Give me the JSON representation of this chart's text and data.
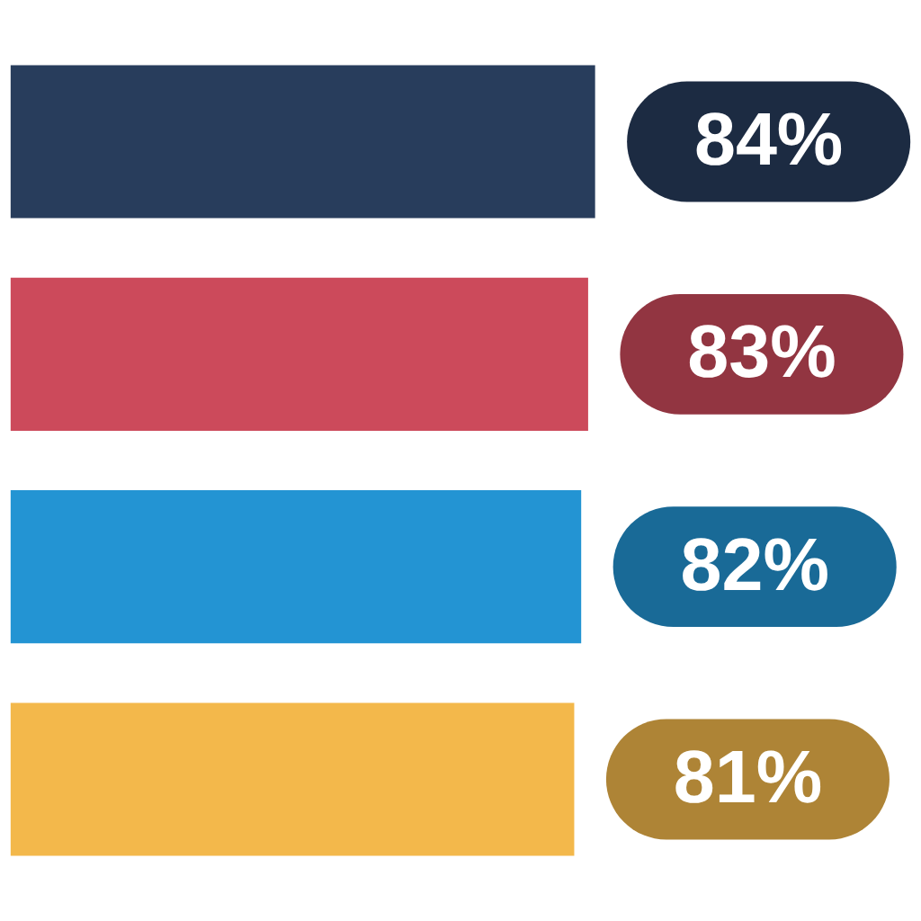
{
  "chart_data": {
    "type": "bar",
    "orientation": "horizontal",
    "categories": [
      null,
      null,
      null,
      null
    ],
    "values": [
      84,
      83,
      82,
      81
    ],
    "value_labels": [
      "84%",
      "83%",
      "82%",
      "81%"
    ],
    "colors": [
      "#283d5c",
      "#cc4a5b",
      "#2394d3",
      "#f3b84b"
    ],
    "tick_labels": false
  }
}
